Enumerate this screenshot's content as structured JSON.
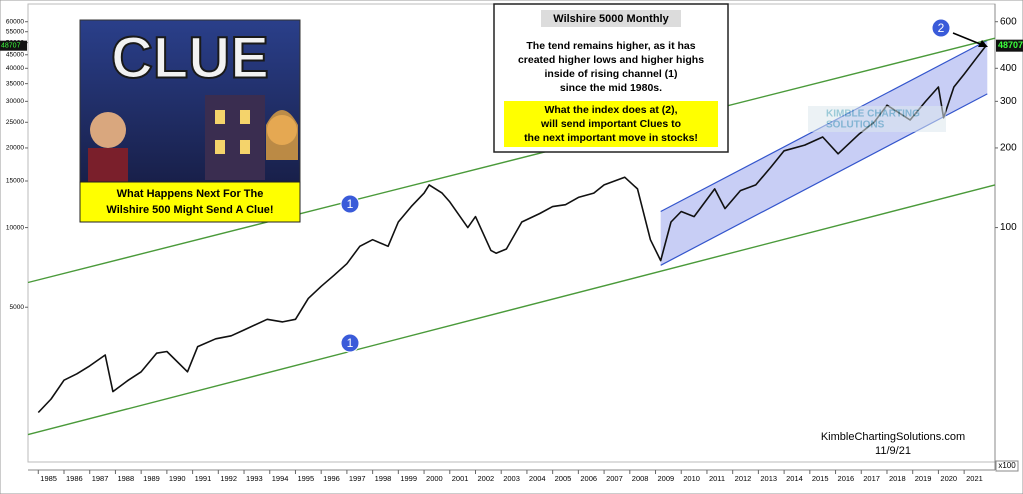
{
  "chart_data": {
    "type": "line",
    "title": "Wilshire 5000 Monthly",
    "box_text": [
      "The tend remains higher, as it has",
      "created higher lows and higher highs",
      "inside of rising channel (1)",
      "since the mid 1980s."
    ],
    "box_highlight": [
      "What the index does at (2),",
      "will send important Clues to",
      "the next important move in stocks!"
    ],
    "inset_title": "CLUE",
    "inset_caption": [
      "What Happens Next For The",
      "Wilshire 500 Might Send A Clue!"
    ],
    "watermark": [
      "KIMBLE CHARTING",
      "SOLUTIONS"
    ],
    "source": "KimbleChartingSolutions.com",
    "date": "11/9/21",
    "y2_label": "x100",
    "markers": [
      "1",
      "1",
      "2"
    ],
    "log_scale": true,
    "color": "#111111",
    "x": [
      1985.0,
      1985.5,
      1986.0,
      1986.5,
      1987.0,
      1987.6,
      1987.9,
      1988.5,
      1989.0,
      1989.6,
      1990.0,
      1990.8,
      1991.2,
      1991.9,
      1992.5,
      1993.0,
      1993.9,
      1994.5,
      1995.0,
      1995.5,
      1996.0,
      1996.5,
      1997.0,
      1997.5,
      1998.0,
      1998.6,
      1999.0,
      1999.5,
      2000.0,
      2000.2,
      2000.7,
      2001.0,
      2001.7,
      2002.0,
      2002.6,
      2002.8,
      2003.2,
      2003.8,
      2004.5,
      2005.0,
      2005.5,
      2006.0,
      2006.6,
      2007.0,
      2007.8,
      2008.3,
      2008.8,
      2009.2,
      2009.6,
      2010.0,
      2010.5,
      2011.3,
      2011.7,
      2012.3,
      2012.9,
      2013.5,
      2014.0,
      2014.8,
      2015.5,
      2016.1,
      2016.9,
      2017.5,
      2018.0,
      2018.9,
      2019.5,
      2020.0,
      2020.2,
      2020.6,
      2021.0,
      2021.5,
      2021.85
    ],
    "values": [
      2000,
      2250,
      2650,
      2800,
      3000,
      3300,
      2400,
      2650,
      2850,
      3350,
      3400,
      2850,
      3550,
      3800,
      3900,
      4100,
      4500,
      4400,
      4500,
      5400,
      6000,
      6600,
      7300,
      8500,
      9000,
      8500,
      10500,
      12000,
      13500,
      14500,
      13500,
      12500,
      10000,
      11000,
      8200,
      8000,
      8300,
      10500,
      11300,
      12000,
      12200,
      13000,
      13500,
      14500,
      15500,
      14000,
      9000,
      7500,
      10500,
      11500,
      11000,
      14000,
      11800,
      13800,
      14500,
      17000,
      19500,
      20500,
      22000,
      19000,
      22500,
      25000,
      29000,
      25500,
      30000,
      34000,
      26000,
      34000,
      38000,
      44000,
      48707
    ],
    "last_value": 48707,
    "trendlines": [
      {
        "color": "#4a9a3a",
        "x": [
          1984.6,
          2022.2
        ],
        "values": [
          6200,
          52000
        ]
      },
      {
        "color": "#4a9a3a",
        "x": [
          1984.6,
          2022.2
        ],
        "values": [
          1650,
          14500
        ]
      }
    ],
    "channel": {
      "color": "#3355cc",
      "fill": "#aab4f0",
      "x": [
        2009.2,
        2021.9
      ],
      "upper": [
        11500,
        51000
      ],
      "lower": [
        7200,
        32000
      ]
    },
    "xlim": [
      1984.6,
      2022.2
    ],
    "xticks": [
      1985,
      1986,
      1987,
      1988,
      1989,
      1990,
      1991,
      1992,
      1993,
      1994,
      1995,
      1996,
      1997,
      1998,
      1999,
      2000,
      2001,
      2002,
      2003,
      2004,
      2005,
      2006,
      2007,
      2008,
      2009,
      2010,
      2011,
      2012,
      2013,
      2014,
      2015,
      2016,
      2017,
      2018,
      2019,
      2020,
      2021
    ],
    "ylim": [
      1300,
      70000
    ],
    "yticks": [
      5000,
      10000,
      15000,
      20000,
      25000,
      30000,
      35000,
      40000,
      45000,
      50000,
      55000,
      60000
    ],
    "y2lim": [
      13,
      700
    ],
    "y2ticks": [
      100,
      200,
      300,
      400,
      600
    ]
  }
}
